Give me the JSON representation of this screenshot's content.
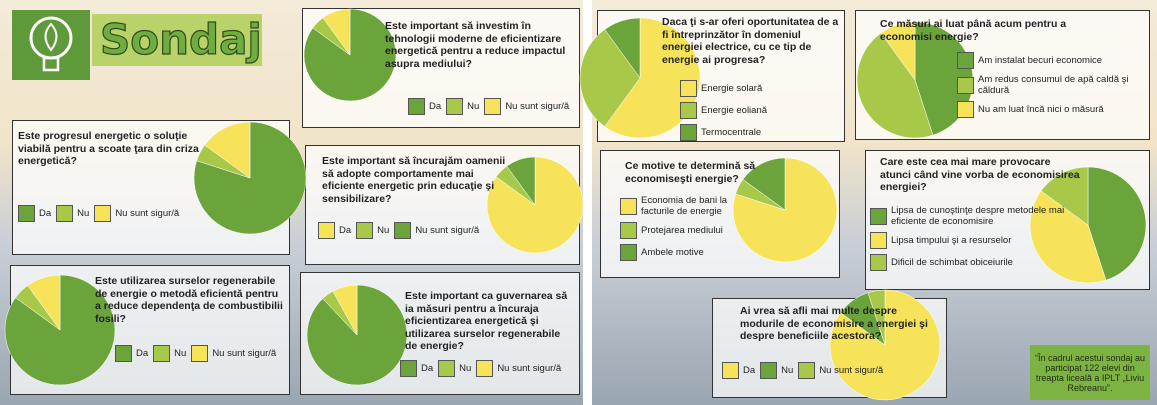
{
  "header": {
    "title": "Sondaj"
  },
  "chart_data": [
    {
      "type": "pie",
      "title": "Este important să investim în tehnologii moderne de eficientizare energetică pentru a reduce impactul asupra mediului?",
      "categories": [
        "Da",
        "Nu",
        "Nu sunt sigur/ă"
      ],
      "values": [
        85,
        5,
        10
      ],
      "colors": [
        "#6ca43c",
        "#a8c84a",
        "#f6e35a"
      ]
    },
    {
      "type": "pie",
      "title": "Este progresul energetic o soluţie viabilă pentru a scoate ţara din criza energetică?",
      "categories": [
        "Da",
        "Nu",
        "Nu sunt sigur/ă"
      ],
      "values": [
        80,
        5,
        15
      ],
      "colors": [
        "#6ca43c",
        "#a8c84a",
        "#f6e35a"
      ]
    },
    {
      "type": "pie",
      "title": "Este important să încurajăm oamenii să adopte comportamente mai eficiente energetic prin educaţie şi sensibilizare?",
      "categories": [
        "Da",
        "Nu",
        "Nu sunt sigur/ă"
      ],
      "values": [
        85,
        5,
        10
      ],
      "colors": [
        "#f6e35a",
        "#a8c84a",
        "#6ca43c"
      ]
    },
    {
      "type": "pie",
      "title": "Este utilizarea surselor regenerabile de energie o metodă eficientă pentru a reduce dependenţa de combustibilii fosili?",
      "categories": [
        "Da",
        "Nu",
        "Nu sunt sigur/ă"
      ],
      "values": [
        85,
        5,
        10
      ],
      "colors": [
        "#6ca43c",
        "#a8c84a",
        "#f6e35a"
      ]
    },
    {
      "type": "pie",
      "title": "Este important ca guvernarea să ia măsuri pentru a încuraja eficientizarea energetică şi utilizarea surselor regenerabile de energie?",
      "categories": [
        "Da",
        "Nu",
        "Nu sunt sigur/ă"
      ],
      "values": [
        88,
        4,
        8
      ],
      "colors": [
        "#6ca43c",
        "#a8c84a",
        "#f6e35a"
      ]
    },
    {
      "type": "pie",
      "title": "Daca ţi s-ar oferi oportunitatea de a fi întreprinzător în domeniul energiei electrice, cu ce tip de energie ai progresa?",
      "categories": [
        "Energie solară",
        "Energie eoliană",
        "Termocentrale"
      ],
      "values": [
        60,
        30,
        10
      ],
      "colors": [
        "#f6e35a",
        "#a8c84a",
        "#6ca43c"
      ]
    },
    {
      "type": "pie",
      "title": "Ce măsuri ai luat până acum pentru a economisi energie?",
      "categories": [
        "Am instalat becuri economice",
        "Am redus consumul de apă caldă şi căldură",
        "Nu am luat încă nici o măsură"
      ],
      "values": [
        45,
        45,
        10
      ],
      "colors": [
        "#6ca43c",
        "#a8c84a",
        "#f6e35a"
      ]
    },
    {
      "type": "pie",
      "title": "Ce motive te determină să economiseşti energie?",
      "categories": [
        "Economia de bani la facturile de energie",
        "Protejarea mediului",
        "Ambele motive"
      ],
      "values": [
        80,
        5,
        15
      ],
      "colors": [
        "#f6e35a",
        "#a8c84a",
        "#6ca43c"
      ]
    },
    {
      "type": "pie",
      "title": "Care este cea mai mare provocare atunci când vine vorba de economisirea energiei?",
      "categories": [
        "Lipsa de cunoştinţe despre metodele mai eficiente de economisire",
        "Lipsa timpului şi a resurselor",
        "Dificil de schimbat obiceiurile"
      ],
      "values": [
        45,
        40,
        15
      ],
      "colors": [
        "#6ca43c",
        "#f6e35a",
        "#a8c84a"
      ]
    },
    {
      "type": "pie",
      "title": "Ai vrea să afli mai multe despre modurile de economisire a energiei şi despre beneficiile acestora?",
      "categories": [
        "Da",
        "Nu",
        "Nu sunt sigur/ă"
      ],
      "values": [
        85,
        10,
        5
      ],
      "colors": [
        "#f6e35a",
        "#6ca43c",
        "#a8c84a"
      ]
    }
  ],
  "note": "“În cadrul acestui sondaj au participat 122 elevi din treapta liceală a IPLT „Liviu Rebreanu”."
}
